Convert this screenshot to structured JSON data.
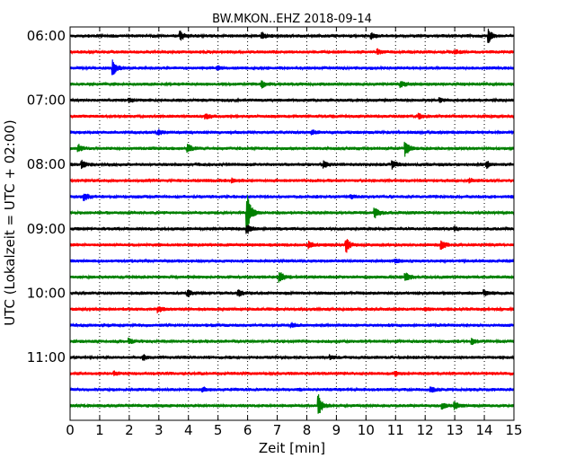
{
  "chart_data": {
    "type": "line",
    "title": "BW.MKON..EHZ 2018-09-14",
    "xlabel": "Zeit  [min]",
    "ylabel": "UTC (Lokalzeit = UTC + 02:00)",
    "xlim": [
      0,
      15
    ],
    "x_ticks": [
      "0",
      "1",
      "2",
      "3",
      "4",
      "5",
      "6",
      "7",
      "8",
      "9",
      "10",
      "11",
      "12",
      "13",
      "14",
      "15"
    ],
    "y_tick_labels": [
      "06:00",
      "07:00",
      "08:00",
      "09:00",
      "10:00",
      "11:00"
    ],
    "grid": true,
    "colors": [
      "#000000",
      "#ff0000",
      "#0000ff",
      "#008000"
    ],
    "traces": [
      {
        "start": "06:00",
        "events": [
          {
            "t": 3.75,
            "a": 0.45
          },
          {
            "t": 14.15,
            "a": 0.7
          },
          {
            "t": 6.5,
            "a": 0.3
          },
          {
            "t": 10.2,
            "a": 0.3
          }
        ]
      },
      {
        "start": "06:15",
        "events": [
          {
            "t": 10.4,
            "a": 0.25
          },
          {
            "t": 13.0,
            "a": 0.2
          }
        ]
      },
      {
        "start": "06:30",
        "events": [
          {
            "t": 1.45,
            "a": 0.9
          },
          {
            "t": 5.0,
            "a": 0.2
          }
        ]
      },
      {
        "start": "06:45",
        "events": [
          {
            "t": 6.5,
            "a": 0.35
          },
          {
            "t": 11.2,
            "a": 0.3
          }
        ]
      },
      {
        "start": "07:00",
        "events": [
          {
            "t": 2.0,
            "a": 0.2
          },
          {
            "t": 12.5,
            "a": 0.2
          }
        ]
      },
      {
        "start": "07:15",
        "events": [
          {
            "t": 4.6,
            "a": 0.25
          },
          {
            "t": 11.8,
            "a": 0.25
          }
        ]
      },
      {
        "start": "07:30",
        "events": [
          {
            "t": 3.0,
            "a": 0.2
          },
          {
            "t": 8.2,
            "a": 0.2
          }
        ]
      },
      {
        "start": "07:45",
        "events": [
          {
            "t": 0.3,
            "a": 0.35
          },
          {
            "t": 4.0,
            "a": 0.45
          },
          {
            "t": 11.35,
            "a": 0.8
          }
        ]
      },
      {
        "start": "08:00",
        "events": [
          {
            "t": 0.4,
            "a": 0.4
          },
          {
            "t": 8.6,
            "a": 0.35
          },
          {
            "t": 10.9,
            "a": 0.45
          },
          {
            "t": 14.1,
            "a": 0.3
          }
        ]
      },
      {
        "start": "08:15",
        "events": [
          {
            "t": 5.5,
            "a": 0.2
          },
          {
            "t": 13.5,
            "a": 0.2
          }
        ]
      },
      {
        "start": "08:30",
        "events": [
          {
            "t": 0.5,
            "a": 0.4
          },
          {
            "t": 9.5,
            "a": 0.2
          }
        ]
      },
      {
        "start": "08:45",
        "events": [
          {
            "t": 6.0,
            "a": 1.9
          },
          {
            "t": 10.3,
            "a": 0.6
          }
        ]
      },
      {
        "start": "09:00",
        "events": [
          {
            "t": 6.0,
            "a": 0.45
          },
          {
            "t": 13.0,
            "a": 0.2
          }
        ]
      },
      {
        "start": "09:15",
        "events": [
          {
            "t": 8.1,
            "a": 0.3
          },
          {
            "t": 9.35,
            "a": 0.7
          },
          {
            "t": 12.55,
            "a": 0.55
          }
        ]
      },
      {
        "start": "09:30",
        "events": [
          {
            "t": 11.0,
            "a": 0.2
          }
        ]
      },
      {
        "start": "09:45",
        "events": [
          {
            "t": 7.1,
            "a": 0.55
          },
          {
            "t": 11.35,
            "a": 0.5
          }
        ]
      },
      {
        "start": "10:00",
        "events": [
          {
            "t": 4.0,
            "a": 0.3
          },
          {
            "t": 5.7,
            "a": 0.3
          },
          {
            "t": 14.0,
            "a": 0.25
          }
        ]
      },
      {
        "start": "10:15",
        "events": [
          {
            "t": 3.0,
            "a": 0.25
          },
          {
            "t": 12.0,
            "a": 0.2
          }
        ]
      },
      {
        "start": "10:30",
        "events": [
          {
            "t": 7.5,
            "a": 0.2
          }
        ]
      },
      {
        "start": "10:45",
        "events": [
          {
            "t": 2.0,
            "a": 0.25
          },
          {
            "t": 13.6,
            "a": 0.25
          }
        ]
      },
      {
        "start": "11:00",
        "events": [
          {
            "t": 2.5,
            "a": 0.25
          },
          {
            "t": 8.8,
            "a": 0.2
          }
        ]
      },
      {
        "start": "11:15",
        "events": [
          {
            "t": 1.5,
            "a": 0.2
          },
          {
            "t": 11.0,
            "a": 0.2
          }
        ]
      },
      {
        "start": "11:30",
        "events": [
          {
            "t": 12.2,
            "a": 0.3
          },
          {
            "t": 4.5,
            "a": 0.2
          }
        ]
      },
      {
        "start": "11:45",
        "events": [
          {
            "t": 8.4,
            "a": 1.1
          },
          {
            "t": 13.0,
            "a": 0.45
          },
          {
            "t": 12.6,
            "a": 0.3
          }
        ]
      }
    ]
  }
}
